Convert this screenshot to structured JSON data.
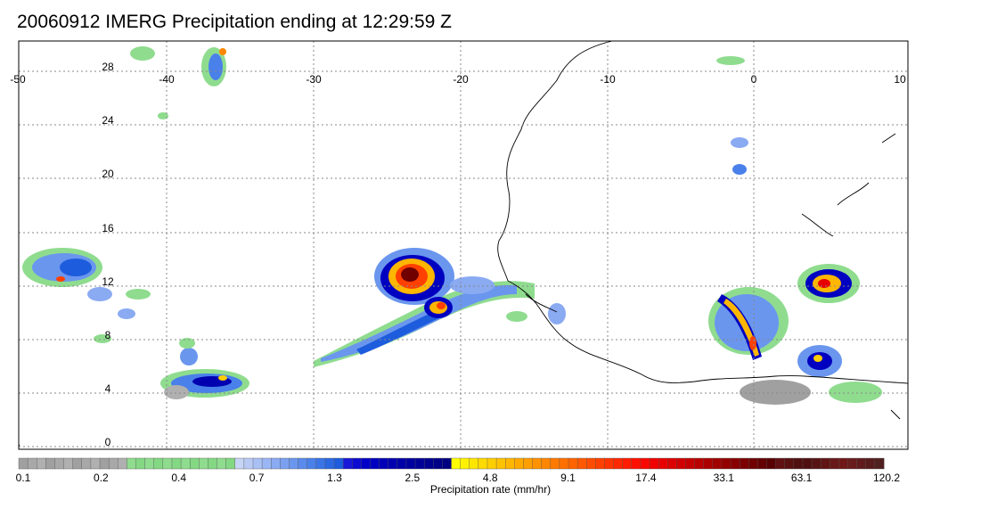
{
  "title": "20060912 IMERG Precipitation ending at 12:29:59 Z",
  "map": {
    "lon_ticks": [
      "-50",
      "-40",
      "-30",
      "-20",
      "-10",
      "0",
      "10"
    ],
    "lat_ticks": [
      "28",
      "24",
      "20",
      "16",
      "12",
      "8",
      "4",
      "0"
    ],
    "lon_range": [
      -50,
      10
    ],
    "lat_range": [
      -0.5,
      30
    ],
    "grid": "dotted",
    "coastline_color": "#000000"
  },
  "colorbar": {
    "title": "Precipitation rate (mm/hr)",
    "labels": [
      "0.1",
      "0.2",
      "0.4",
      "0.7",
      "1.3",
      "2.5",
      "4.8",
      "9.1",
      "17.4",
      "33.1",
      "63.1",
      "120.2"
    ],
    "colors": [
      "#a0a0a0",
      "#a8a8a8",
      "#b0b0b0",
      "#a0a0a0",
      "#a8a8a8",
      "#b0b0b0",
      "#a0a0a0",
      "#a8a8a8",
      "#b0b0b0",
      "#a0a0a0",
      "#a8a8a8",
      "#b0b0b0",
      "#8fdc8f",
      "#84d884",
      "#8fdc8f",
      "#84d884",
      "#8fdc8f",
      "#84d884",
      "#8fdc8f",
      "#84d884",
      "#8fdc8f",
      "#84d884",
      "#8fdc8f",
      "#84d884",
      "#c6d4f5",
      "#b8caf4",
      "#a9c0f4",
      "#9ab6f4",
      "#8aaaf2",
      "#7ba0f0",
      "#6a96ee",
      "#5a8aec",
      "#4a80ea",
      "#3a74e6",
      "#2c68e2",
      "#1e5cde",
      "#1818d8",
      "#0c0cd0",
      "#0000c8",
      "#0000c0",
      "#0000b8",
      "#0000b0",
      "#0000a8",
      "#0000a0",
      "#000098",
      "#000090",
      "#000088",
      "#000080",
      "#ffff00",
      "#fff200",
      "#ffe600",
      "#ffda00",
      "#ffce00",
      "#ffc200",
      "#ffb600",
      "#ffaa00",
      "#ff9e00",
      "#ff9200",
      "#ff8600",
      "#ff7a00",
      "#ff7000",
      "#ff6400",
      "#ff5800",
      "#ff4c00",
      "#ff4000",
      "#ff3400",
      "#ff2800",
      "#ff1c00",
      "#ff1000",
      "#f80800",
      "#f00000",
      "#e80000",
      "#dc0000",
      "#d00000",
      "#c40000",
      "#b80000",
      "#ac0000",
      "#a00000",
      "#940000",
      "#880000",
      "#7c0000",
      "#700000",
      "#640000",
      "#580000",
      "#601010",
      "#581010",
      "#501010",
      "#501010",
      "#581414",
      "#601414",
      "#681818",
      "#701818",
      "#681c1c",
      "#601c1c",
      "#581c1c",
      "#502020"
    ]
  }
}
